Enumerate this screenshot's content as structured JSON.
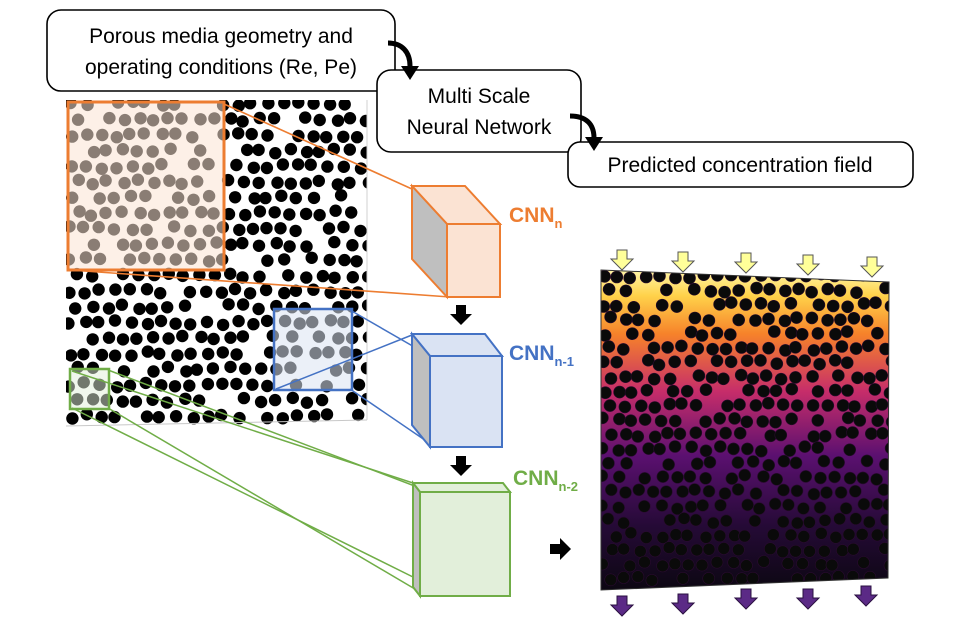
{
  "boxes": {
    "input_line1": "Porous media geometry and",
    "input_line2": "operating conditions (Re, Pe)",
    "network_line1": "Multi Scale",
    "network_line2": "Neural Network",
    "output": "Predicted concentration field"
  },
  "cnn": [
    {
      "base": "CNN",
      "sub": "n",
      "color": "#ed7d31"
    },
    {
      "base": "CNN",
      "sub": "n-1",
      "color": "#4472c4"
    },
    {
      "base": "CNN",
      "sub": "n-2",
      "color": "#70ad47"
    }
  ],
  "colors": {
    "orange": "#ed7d31",
    "orange_fill": "#fbe3d3",
    "blue": "#4472c4",
    "blue_fill": "#dae3f3",
    "green": "#70ad47",
    "green_fill": "#e2efda",
    "inlet_arrow": "#ffff99",
    "outlet_arrow": "#5b2a86"
  },
  "icons": {
    "inlet": "arrow-down-icon",
    "outlet": "arrow-down-icon",
    "flow": "curved-arrow-icon"
  }
}
